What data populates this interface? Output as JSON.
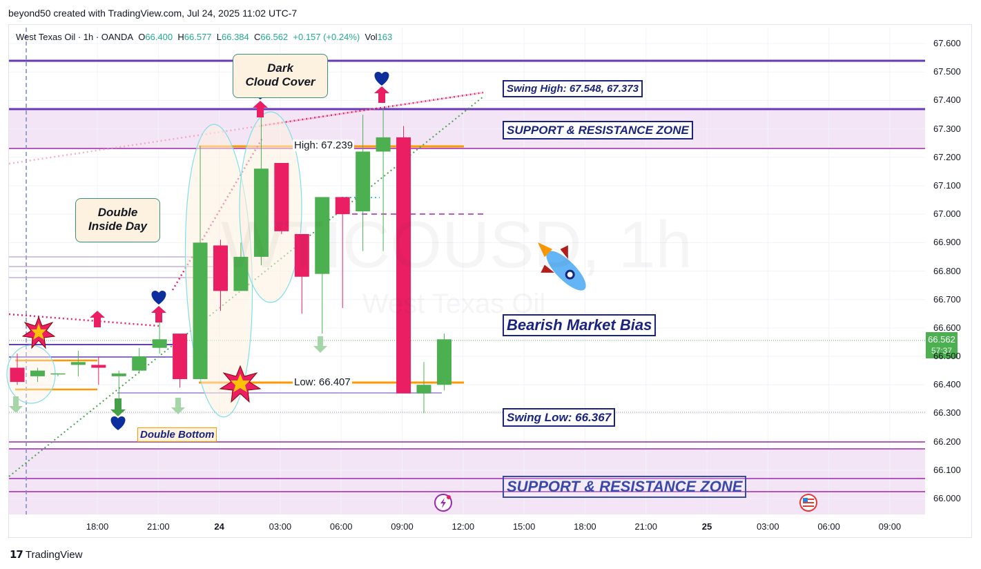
{
  "credit": "beyond50 created with TradingView.com, Jul 24, 2025 11:02 UTC-7",
  "legend": {
    "symbol": "West Texas Oil · 1h · OANDA",
    "o_label": "O",
    "o": "66.400",
    "h_label": "H",
    "h": "66.577",
    "l_label": "L",
    "l": "66.384",
    "c_label": "C",
    "c": "66.562",
    "change": "+0.157 (+0.24%)",
    "vol_label": "Vol",
    "vol": "163"
  },
  "watermark": {
    "ticker": "WTICOUSD, 1h",
    "name": "West Texas Oil"
  },
  "price_tag": {
    "price": "66.562",
    "countdown": "57:37"
  },
  "annotations": {
    "swing_high": "Swing High: 67.548, 67.373",
    "sr_zone_top": "SUPPORT & RESISTANCE ZONE",
    "high": "High: 67.239",
    "bearish": "Bearish Market Bias",
    "low": "Low: 66.407",
    "swing_low": "Swing Low: 66.367",
    "sr_zone_bottom": "SUPPORT & RESISTANCE ZONE",
    "double_bottom": "Double Bottom",
    "dark_cloud_1": "Dark",
    "dark_cloud_2": "Cloud Cover",
    "double_inside_1": "Double",
    "double_inside_2": "Inside Day"
  },
  "brand": "TradingView",
  "colors": {
    "up": "#4caf50",
    "down": "#e91e63",
    "zone": "#f3e5f5",
    "zone_line": "#9c27b0",
    "accent_line": "#673ab7",
    "orange": "#ff9800"
  },
  "chart_data": {
    "type": "candlestick",
    "title": "West Texas Oil · 1h · OANDA",
    "y_ticks": [
      "67.600",
      "67.500",
      "67.400",
      "67.300",
      "67.200",
      "67.100",
      "67.000",
      "66.900",
      "66.800",
      "66.700",
      "66.600",
      "66.500",
      "66.400",
      "66.300",
      "66.200",
      "66.100",
      "66.000"
    ],
    "x_ticks": [
      "18:00",
      "21:00",
      "24",
      "03:00",
      "06:00",
      "09:00",
      "12:00",
      "15:00",
      "18:00",
      "21:00",
      "25",
      "03:00",
      "06:00",
      "09:00"
    ],
    "ylim": [
      65.96,
      67.66
    ],
    "candles": [
      {
        "o": 66.46,
        "h": 66.51,
        "l": 66.4,
        "c": 66.41
      },
      {
        "o": 66.43,
        "h": 66.46,
        "l": 66.41,
        "c": 66.45
      },
      {
        "o": 66.44,
        "h": 66.44,
        "l": 66.43,
        "c": 66.44
      },
      {
        "o": 66.47,
        "h": 66.52,
        "l": 66.43,
        "c": 66.48
      },
      {
        "o": 66.47,
        "h": 66.5,
        "l": 66.4,
        "c": 66.46
      },
      {
        "o": 66.43,
        "h": 66.45,
        "l": 66.32,
        "c": 66.44
      },
      {
        "o": 66.45,
        "h": 66.53,
        "l": 66.44,
        "c": 66.5
      },
      {
        "o": 66.53,
        "h": 66.62,
        "l": 66.51,
        "c": 66.56
      },
      {
        "o": 66.58,
        "h": 66.58,
        "l": 66.39,
        "c": 66.42
      },
      {
        "o": 66.42,
        "h": 67.24,
        "l": 66.42,
        "c": 66.9
      },
      {
        "o": 66.89,
        "h": 66.91,
        "l": 66.66,
        "c": 66.73
      },
      {
        "o": 66.73,
        "h": 66.9,
        "l": 66.73,
        "c": 66.85
      },
      {
        "o": 66.85,
        "h": 67.37,
        "l": 66.82,
        "c": 67.16
      },
      {
        "o": 67.18,
        "h": 67.18,
        "l": 66.93,
        "c": 66.94
      },
      {
        "o": 66.93,
        "h": 66.93,
        "l": 66.65,
        "c": 66.78
      },
      {
        "o": 66.79,
        "h": 67.06,
        "l": 66.58,
        "c": 67.06
      },
      {
        "o": 67.06,
        "h": 67.06,
        "l": 66.67,
        "c": 67.0
      },
      {
        "o": 67.01,
        "h": 67.35,
        "l": 66.87,
        "c": 67.22
      },
      {
        "o": 67.22,
        "h": 67.37,
        "l": 66.87,
        "c": 67.27
      },
      {
        "o": 67.27,
        "h": 67.31,
        "l": 66.37,
        "c": 66.37
      },
      {
        "o": 66.37,
        "h": 66.48,
        "l": 66.3,
        "c": 66.4
      },
      {
        "o": 66.4,
        "h": 66.58,
        "l": 66.38,
        "c": 66.56
      }
    ]
  }
}
